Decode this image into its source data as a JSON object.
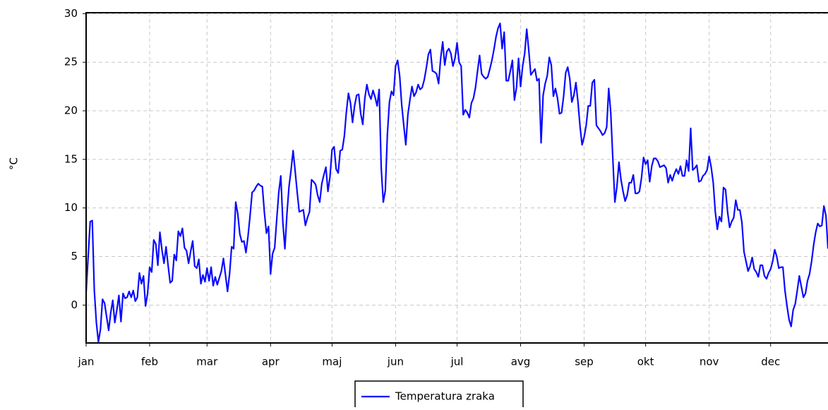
{
  "chart_data": {
    "type": "line",
    "y_label": "°C",
    "xlim": [
      0,
      362
    ],
    "ylim": [
      -3.9,
      30.1
    ],
    "yticks": [
      0,
      5,
      10,
      15,
      20,
      25,
      30
    ],
    "xticks": [
      {
        "value": 0,
        "label": "jan"
      },
      {
        "value": 31,
        "label": "feb"
      },
      {
        "value": 59,
        "label": "mar"
      },
      {
        "value": 90,
        "label": "apr"
      },
      {
        "value": 120,
        "label": "maj"
      },
      {
        "value": 151,
        "label": "jun"
      },
      {
        "value": 181,
        "label": "jul"
      },
      {
        "value": 212,
        "label": "avg"
      },
      {
        "value": 243,
        "label": "sep"
      },
      {
        "value": 273,
        "label": "okt"
      },
      {
        "value": 304,
        "label": "nov"
      },
      {
        "value": 334,
        "label": "dec"
      }
    ],
    "grid": true,
    "legend": "bottom",
    "series": [
      {
        "name": "Temperatura zraka",
        "color": "#0a0aff",
        "values": [
          1.3,
          5,
          8.6,
          8.7,
          1.5,
          -1.8,
          -3.8,
          -2.5,
          0.6,
          0.2,
          -1.2,
          -2.6,
          -0.8,
          0.5,
          -1.8,
          -0.5,
          1,
          -1.7,
          1.2,
          0.7,
          0.8,
          1.4,
          0.8,
          1.5,
          0.4,
          0.8,
          3.3,
          2.2,
          3,
          -0.1,
          1.2,
          3.9,
          3.4,
          6.7,
          6.3,
          4.1,
          7.5,
          5.7,
          4.3,
          6,
          4.1,
          2.3,
          2.5,
          5.2,
          4.6,
          7.6,
          7.1,
          7.9,
          5.9,
          5.6,
          4.3,
          5.5,
          6.6,
          4,
          3.8,
          4.7,
          2.2,
          3.1,
          2.4,
          3.8,
          2.5,
          3.9,
          2,
          2.9,
          2.1,
          2.8,
          3.5,
          4.8,
          3.1,
          1.4,
          3.2,
          6,
          5.8,
          10.6,
          9.4,
          7.3,
          6.5,
          6.6,
          5.4,
          7.1,
          9.2,
          11.6,
          11.8,
          12.2,
          12.5,
          12.3,
          12.2,
          9.5,
          7.4,
          8.1,
          3.2,
          5.3,
          5.9,
          8.8,
          11.6,
          13.3,
          8.5,
          5.8,
          9.4,
          12.2,
          13.9,
          15.9,
          13.8,
          11.6,
          9.6,
          9.7,
          9.8,
          8.2,
          9,
          9.6,
          12.9,
          12.7,
          12.4,
          11.3,
          10.6,
          12.5,
          13.4,
          14.2,
          11.7,
          13.2,
          16,
          16.3,
          14,
          13.6,
          15.9,
          16,
          17.4,
          19.9,
          21.8,
          20.8,
          18.8,
          20.5,
          21.6,
          21.7,
          19.7,
          18.6,
          21.3,
          22.7,
          21.7,
          21.2,
          22.1,
          21.4,
          20.5,
          22.2,
          14.1,
          10.6,
          11.8,
          17.6,
          20.9,
          22,
          21.6,
          24.6,
          25.2,
          23.6,
          20.6,
          18.5,
          16.5,
          19.6,
          21.1,
          22.5,
          21.5,
          21.9,
          22.7,
          22.2,
          22.4,
          23.2,
          24.4,
          25.8,
          26.3,
          24.1,
          24,
          23.8,
          22.8,
          25.4,
          27.1,
          24.7,
          26.1,
          26.4,
          25.9,
          24.6,
          25.4,
          27,
          25,
          24.6,
          19.6,
          20.1,
          19.8,
          19.3,
          20.8,
          21.3,
          22.4,
          24.1,
          25.7,
          23.8,
          23.5,
          23.3,
          23.5,
          24.3,
          25.2,
          26.3,
          27.6,
          28.5,
          29,
          26.4,
          28.1,
          23.1,
          23.1,
          24.1,
          25.2,
          21.1,
          22.4,
          25.4,
          22.5,
          24.6,
          25.9,
          28.4,
          26.2,
          23.7,
          24,
          24.3,
          23.1,
          23.3,
          16.7,
          21.6,
          22.8,
          23.6,
          25.5,
          24.7,
          21.5,
          22.3,
          21.3,
          19.7,
          19.8,
          21.5,
          23.9,
          24.5,
          23.3,
          20.9,
          21.6,
          22.9,
          20.9,
          18.4,
          16.5,
          17.3,
          18.5,
          20.5,
          20.5,
          22.9,
          23.2,
          18.5,
          18.2,
          17.9,
          17.5,
          17.7,
          18.3,
          22.3,
          19.8,
          15.1,
          10.6,
          12.2,
          14.7,
          12.9,
          11.7,
          10.7,
          11.3,
          12.6,
          12.6,
          13.4,
          11.5,
          11.5,
          11.7,
          13.1,
          15.2,
          14.5,
          14.9,
          12.7,
          14.3,
          15.1,
          15.1,
          14.8,
          14.2,
          14.3,
          14.4,
          14.1,
          12.6,
          13.4,
          12.8,
          13.5,
          14,
          13.5,
          14.3,
          13.3,
          13.3,
          14.9,
          13.8,
          18.2,
          13.9,
          14.1,
          14.4,
          12.7,
          12.8,
          13.3,
          13.5,
          13.9,
          15.3,
          14.2,
          12.6,
          9.6,
          7.8,
          9.1,
          8.6,
          12.1,
          11.9,
          9.6,
          8,
          8.6,
          9,
          10.8,
          9.8,
          9.8,
          8.5,
          5.5,
          4.5,
          3.5,
          4,
          4.9,
          3.7,
          3.4,
          2.9,
          4.1,
          4.1,
          3,
          2.7,
          3.3,
          3.7,
          4.5,
          5.7,
          5,
          3.8,
          3.9,
          3.9,
          1.5,
          -0.1,
          -1.5,
          -2.2,
          -0.5,
          0.1,
          1.5,
          3,
          1.9,
          0.8,
          1.2,
          2.5,
          3.2,
          4.5,
          6.2,
          7.5,
          8.4,
          8.1,
          8.2,
          10.2,
          9.2,
          5.8
        ]
      }
    ]
  }
}
